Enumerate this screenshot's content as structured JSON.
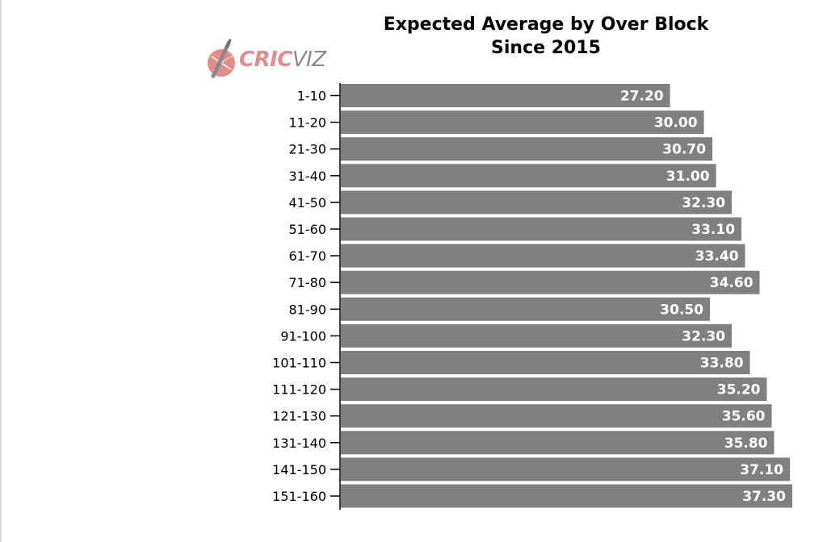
{
  "logo": {
    "text_primary": "CRIC",
    "text_secondary": "VIZ",
    "icon": "cricket-ball-bat-icon",
    "primary_color": "#e48b8b",
    "secondary_color": "#8a8a8a"
  },
  "chart_data": {
    "type": "bar",
    "orientation": "horizontal",
    "title": "Expected Average by Over Block",
    "subtitle": "Since 2015",
    "bar_color": "#808080",
    "value_label_color": "#ffffff",
    "grid": false,
    "xlim": [
      0,
      37.3
    ],
    "categories": [
      "1-10",
      "11-20",
      "21-30",
      "31-40",
      "41-50",
      "51-60",
      "61-70",
      "71-80",
      "81-90",
      "91-100",
      "101-110",
      "111-120",
      "121-130",
      "131-140",
      "141-150",
      "151-160"
    ],
    "values": [
      27.2,
      30.0,
      30.7,
      31.0,
      32.3,
      33.1,
      33.4,
      34.6,
      30.5,
      32.3,
      33.8,
      35.2,
      35.6,
      35.8,
      37.1,
      37.3
    ],
    "value_labels": [
      "27.20",
      "30.00",
      "30.70",
      "31.00",
      "32.30",
      "33.10",
      "33.40",
      "34.60",
      "30.50",
      "32.30",
      "33.80",
      "35.20",
      "35.60",
      "35.80",
      "37.10",
      "37.30"
    ]
  }
}
